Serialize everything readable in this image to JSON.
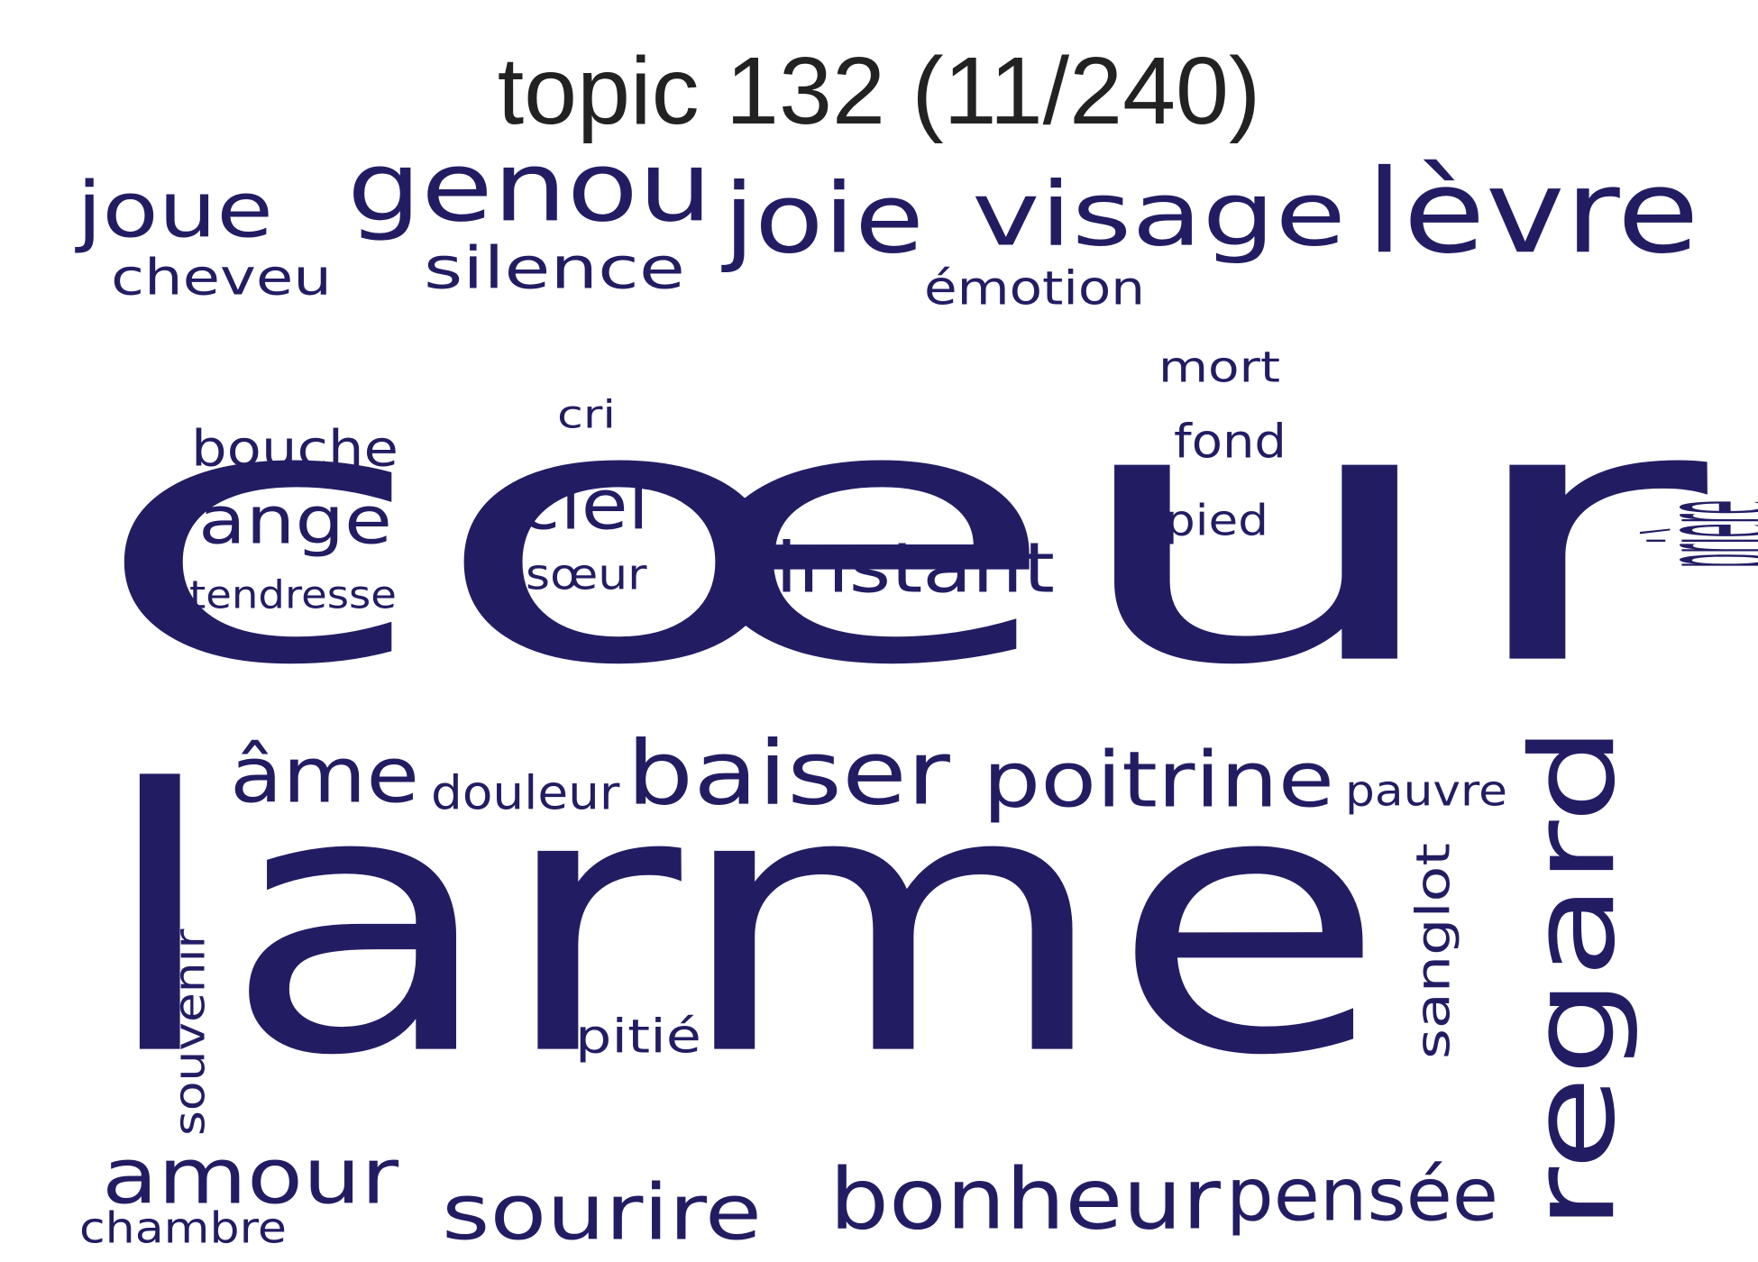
{
  "title": "topic 132 (11/240)",
  "word_color": "#221d63",
  "words": [
    "cœur",
    "larme",
    "regard",
    "lèvre",
    "visage",
    "genou",
    "joie",
    "joue",
    "silence",
    "cheveu",
    "émotion",
    "baiser",
    "poitrine",
    "bonheur",
    "sourire",
    "pensée",
    "amour",
    "âme",
    "instant",
    "ciel",
    "ange",
    "bouche",
    "prière",
    "mort",
    "fond",
    "pied",
    "cri",
    "sœur",
    "tendresse",
    "douleur",
    "pauvre",
    "sanglot",
    "souvenir",
    "pitié",
    "chambre"
  ]
}
